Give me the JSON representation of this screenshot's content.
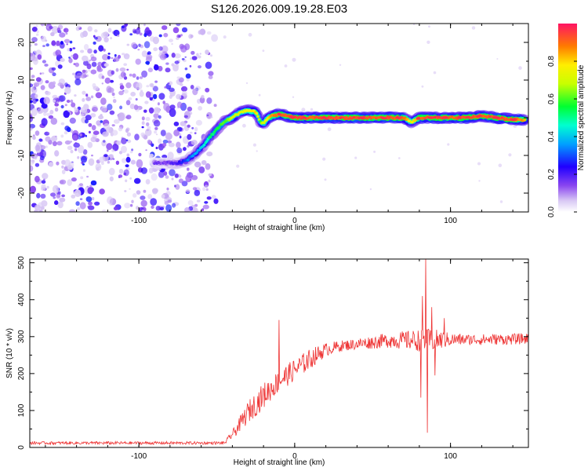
{
  "title": "S126.2026.009.19.28.E03",
  "chart_data": [
    {
      "type": "heatmap",
      "xlabel": "Height of straight line (km)",
      "ylabel": "Frequency (Hz)",
      "xlim": [
        -170,
        150
      ],
      "ylim": [
        -25,
        25
      ],
      "x_ticks": [
        -100,
        0,
        100
      ],
      "y_ticks": [
        -20,
        -10,
        0,
        10,
        20
      ],
      "colorbar": {
        "label": "Normalized spectral amplitude",
        "range": [
          0,
          1
        ],
        "ticks": [
          0.0,
          0.2,
          0.4,
          0.6,
          0.8
        ],
        "tick_labels": [
          "0.0",
          "0.2",
          "0.4",
          "0.6",
          "0.8"
        ]
      },
      "ridge": {
        "x": [
          -90,
          -82,
          -75,
          -70,
          -65,
          -60,
          -55,
          -50,
          -45,
          -40,
          -35,
          -30,
          -25,
          -22,
          -20,
          -17,
          -14,
          -10,
          -5,
          0,
          10,
          20,
          30,
          40,
          50,
          60,
          70,
          75,
          78,
          80,
          90,
          100,
          110,
          120,
          130,
          140,
          148
        ],
        "frequency": [
          -12,
          -12,
          -12,
          -11.5,
          -10,
          -8,
          -5.5,
          -3,
          -1,
          0,
          1.5,
          2,
          1.5,
          -1,
          -1.5,
          0,
          0.5,
          1,
          0.5,
          0,
          0,
          0,
          0,
          0,
          0,
          0,
          0,
          -1.2,
          -0.5,
          0,
          0,
          0,
          0,
          0.5,
          0,
          -0.5,
          -0.5
        ],
        "amplitude": [
          0.15,
          0.15,
          0.2,
          0.3,
          0.35,
          0.4,
          0.5,
          0.55,
          0.6,
          0.7,
          0.7,
          0.75,
          0.8,
          0.6,
          0.7,
          0.8,
          0.85,
          0.9,
          0.9,
          0.95,
          0.9,
          0.95,
          0.9,
          0.95,
          0.9,
          0.95,
          0.9,
          0.7,
          0.85,
          0.9,
          0.95,
          0.9,
          0.95,
          0.9,
          0.95,
          0.9,
          0.85
        ]
      },
      "noise_region_x": [
        -170,
        -50
      ]
    },
    {
      "type": "line",
      "xlabel": "Height of straight line (km)",
      "ylabel": "SNR (10 * v/v)",
      "xlim": [
        -170,
        150
      ],
      "ylim": [
        0,
        510
      ],
      "x_ticks": [
        -100,
        0,
        100
      ],
      "y_ticks": [
        0,
        100,
        200,
        300,
        400,
        500
      ],
      "series": [
        {
          "name": "SNR",
          "color": "#ee3333",
          "envelope_x": [
            -170,
            -45,
            -38,
            -30,
            -20,
            -10,
            0,
            10,
            20,
            30,
            40,
            50,
            60,
            70,
            80,
            90,
            100,
            110,
            120,
            130,
            140,
            150
          ],
          "envelope_mean": [
            12,
            12,
            45,
            95,
            140,
            180,
            210,
            240,
            265,
            275,
            280,
            285,
            290,
            290,
            290,
            290,
            292,
            292,
            292,
            293,
            293,
            295
          ],
          "envelope_amp": [
            4,
            4,
            15,
            30,
            35,
            30,
            30,
            28,
            18,
            15,
            15,
            18,
            20,
            25,
            30,
            30,
            18,
            15,
            15,
            15,
            15,
            15
          ],
          "spikes": [
            {
              "x": -10,
              "value": 345
            },
            {
              "x": 81,
              "value": 135
            },
            {
              "x": 82,
              "value": 410
            },
            {
              "x": 84,
              "value": 510
            },
            {
              "x": 85,
              "value": 40
            },
            {
              "x": 86,
              "value": 320
            },
            {
              "x": 88,
              "value": 380
            },
            {
              "x": 90,
              "value": 195
            },
            {
              "x": 96,
              "value": 350
            }
          ]
        }
      ]
    }
  ]
}
